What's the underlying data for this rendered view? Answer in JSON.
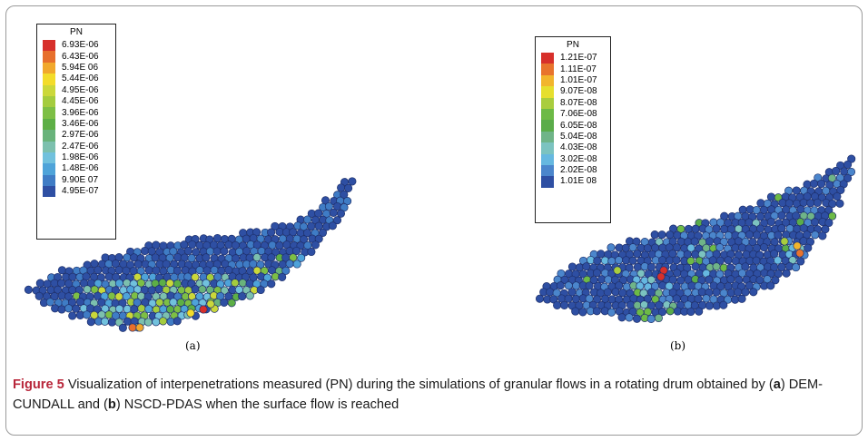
{
  "figure": {
    "label": "Figure 5",
    "caption_parts": [
      " Visualization of interpenetrations measured (PN) during the simulations of granular flows in a rotating drum obtained by (",
      "a",
      ") DEM-CUNDALL and (",
      "b",
      ") NSCD-PDAS when the surface flow is reached"
    ]
  },
  "panel_a": {
    "sublabel": "(a)",
    "legend_title": "PN",
    "legend": [
      {
        "label": "6.93E-06",
        "color": "#d7302b"
      },
      {
        "label": "6.43E-06",
        "color": "#e76f2c"
      },
      {
        "label": "5.94E 06",
        "color": "#f1a82c"
      },
      {
        "label": "5.44E-06",
        "color": "#f3dc2a"
      },
      {
        "label": "4.95E-06",
        "color": "#cbd83a"
      },
      {
        "label": "4.45E-06",
        "color": "#a4cc3e"
      },
      {
        "label": "3.96E-06",
        "color": "#7dbf45"
      },
      {
        "label": "3.46E-06",
        "color": "#5daf46"
      },
      {
        "label": "2.97E-06",
        "color": "#69b37b"
      },
      {
        "label": "2.47E-06",
        "color": "#7cc0ae"
      },
      {
        "label": "1.98E-06",
        "color": "#71c1dd"
      },
      {
        "label": "1.48E-06",
        "color": "#4ea3d9"
      },
      {
        "label": "9.90E 07",
        "color": "#3f7cc5"
      },
      {
        "label": "4.95E-07",
        "color": "#2e4fa3"
      }
    ]
  },
  "panel_b": {
    "sublabel": "(b)",
    "legend_title": "PN",
    "legend": [
      {
        "label": "1.21E-07",
        "color": "#d7302b"
      },
      {
        "label": "1.11E-07",
        "color": "#e8742d"
      },
      {
        "label": "1.01E-07",
        "color": "#f2b52d"
      },
      {
        "label": "9.07E-08",
        "color": "#e6df2e"
      },
      {
        "label": "8.07E-08",
        "color": "#a9cd3e"
      },
      {
        "label": "7.06E-08",
        "color": "#6dba46"
      },
      {
        "label": "6.05E-08",
        "color": "#5aac4a"
      },
      {
        "label": "5.04E-08",
        "color": "#6fb488"
      },
      {
        "label": "4.03E-08",
        "color": "#7cc3c0"
      },
      {
        "label": "3.02E-08",
        "color": "#66b8e0"
      },
      {
        "label": "2.02E-08",
        "color": "#4b86cc"
      },
      {
        "label": "1.01E 08",
        "color": "#2e4fa3"
      }
    ]
  }
}
